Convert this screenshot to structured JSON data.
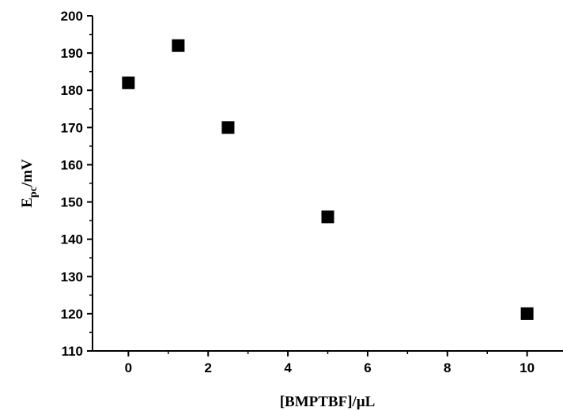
{
  "chart_data": {
    "type": "scatter",
    "title": "",
    "xlabel": "[BMPTBF]/μL",
    "ylabel_main": "E",
    "ylabel_sub": "pc",
    "ylabel_unit": "/mV",
    "xlim": [
      -0.9,
      10.9
    ],
    "ylim": [
      110,
      200
    ],
    "xticks": [
      0,
      2,
      4,
      6,
      8,
      10
    ],
    "yticks": [
      110,
      120,
      130,
      140,
      150,
      160,
      170,
      180,
      190,
      200
    ],
    "marker": "square",
    "color": "#000000",
    "grid": false,
    "legend": "none",
    "points": [
      {
        "x": 0,
        "y": 182
      },
      {
        "x": 1.25,
        "y": 192
      },
      {
        "x": 2.5,
        "y": 170
      },
      {
        "x": 5,
        "y": 146
      },
      {
        "x": 10,
        "y": 120
      }
    ]
  }
}
